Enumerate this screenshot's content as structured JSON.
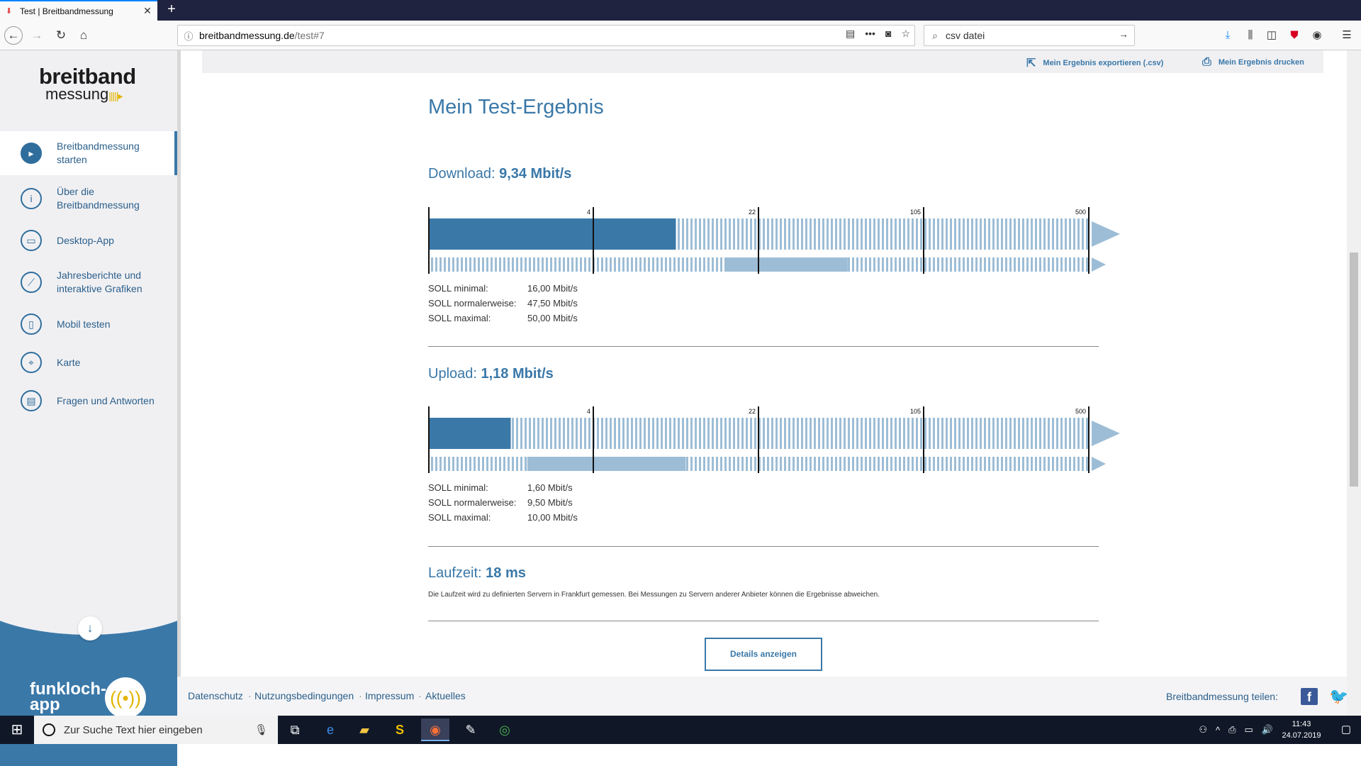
{
  "browser": {
    "tab_title": "Test | Breitbandmessung",
    "url_host": "breitbandmessung.de",
    "url_path": "/test#7",
    "search_value": "csv datei"
  },
  "sidebar": {
    "logo_top": "breitband",
    "logo_bottom": "messung",
    "items": [
      {
        "label": "Breitbandmessung starten",
        "icon": "play-icon",
        "active": true
      },
      {
        "label": "Über die Breitbandmessung",
        "icon": "info-icon"
      },
      {
        "label": "Desktop-App",
        "icon": "monitor-icon"
      },
      {
        "label": "Jahresberichte und interaktive Grafiken",
        "icon": "chart-icon"
      },
      {
        "label": "Mobil testen",
        "icon": "phone-icon"
      },
      {
        "label": "Karte",
        "icon": "map-pin-icon"
      },
      {
        "label": "Fragen und Antworten",
        "icon": "chat-icon"
      }
    ],
    "promo_line1": "funkloch-",
    "promo_line2": "app"
  },
  "actions": {
    "export": "Mein Ergebnis exportieren (.csv)",
    "print": "Mein Ergebnis drucken"
  },
  "result": {
    "title": "Mein Test-Ergebnis",
    "scale_ticks": [
      "4",
      "22",
      "105",
      "500"
    ],
    "download": {
      "label": "Download:",
      "value": "9,34 Mbit/s",
      "measured_fraction": 0.375,
      "soll_band": [
        0.45,
        0.635
      ],
      "soll": [
        {
          "k": "SOLL minimal:",
          "v": "16,00 Mbit/s"
        },
        {
          "k": "SOLL normalerweise:",
          "v": "47,50 Mbit/s"
        },
        {
          "k": "SOLL maximal:",
          "v": "50,00 Mbit/s"
        }
      ]
    },
    "upload": {
      "label": "Upload:",
      "value": "1,18 Mbit/s",
      "measured_fraction": 0.125,
      "soll_band": [
        0.15,
        0.39
      ],
      "soll": [
        {
          "k": "SOLL minimal:",
          "v": "1,60 Mbit/s"
        },
        {
          "k": "SOLL normalerweise:",
          "v": "9,50 Mbit/s"
        },
        {
          "k": "SOLL maximal:",
          "v": "10,00 Mbit/s"
        }
      ]
    },
    "latency": {
      "label": "Laufzeit:",
      "value": "18 ms",
      "note": "Die Laufzeit wird zu definierten Servern in Frankfurt gemessen. Bei Messungen zu Servern anderer Anbieter können die Ergebnisse abweichen."
    },
    "details_button": "Details anzeigen"
  },
  "footer": {
    "links": [
      "Datenschutz",
      "Nutzungsbedingungen",
      "Impressum",
      "Aktuelles"
    ],
    "share_label": "Breitbandmessung teilen:"
  },
  "taskbar": {
    "search_placeholder": "Zur Suche Text hier eingeben",
    "time": "11:43",
    "date": "24.07.2019"
  },
  "colors": {
    "primary": "#3a78a8",
    "bar_light": "#9dbdd6",
    "sidebar_bg": "#f0f0f3"
  }
}
